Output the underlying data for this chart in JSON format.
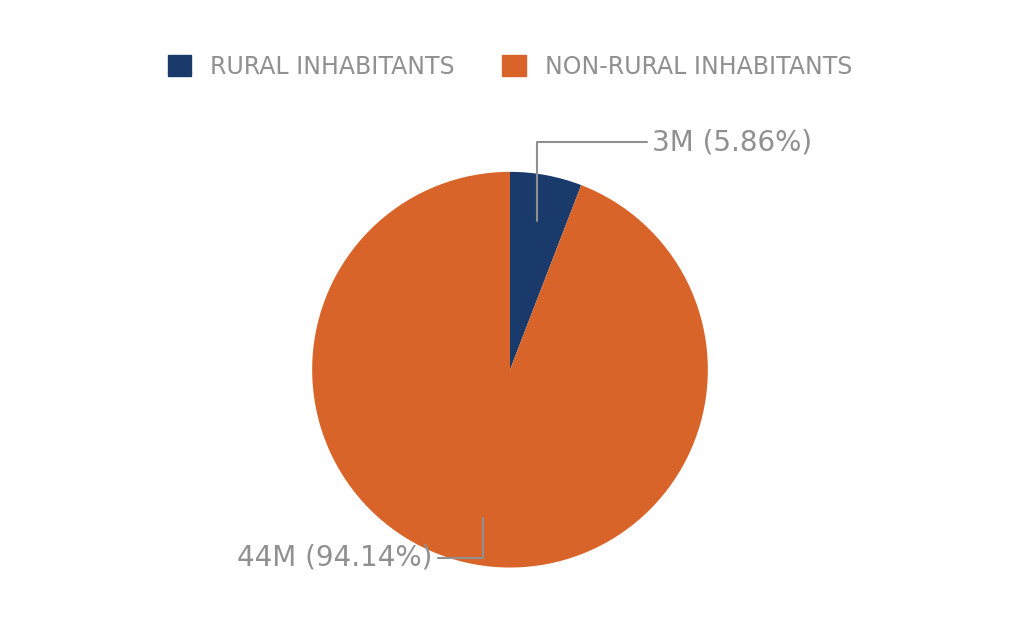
{
  "labels": [
    "RURAL INHABITANTS",
    "NON-RURAL INHABITANTS"
  ],
  "values": [
    5.86,
    94.14
  ],
  "colors": [
    "#1a3a6b",
    "#d9642a"
  ],
  "annotation_rural": "3M (5.86%)",
  "annotation_nonrural": "44M (94.14%)",
  "annotation_color": "#909090",
  "annotation_fontsize": 20,
  "legend_fontsize": 17,
  "background_color": "#ffffff"
}
